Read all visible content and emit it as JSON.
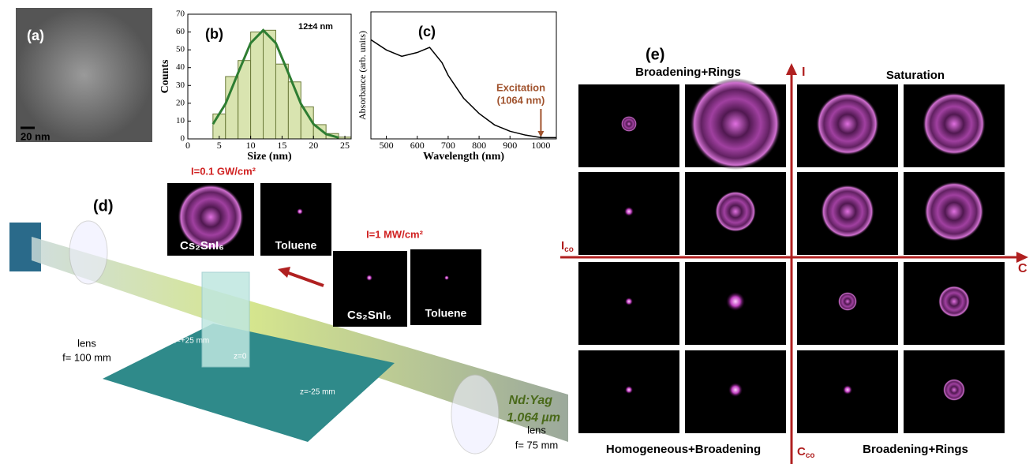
{
  "chart_data": [
    {
      "type": "histogram",
      "label": "(b)",
      "xlabel": "Size (nm)",
      "ylabel": "Counts",
      "annotation": "12±4 nm",
      "bins": [
        4,
        6,
        8,
        10,
        12,
        14,
        16,
        18,
        20,
        22,
        24,
        26
      ],
      "values": [
        14,
        35,
        44,
        60,
        61,
        42,
        32,
        18,
        8,
        3,
        1
      ],
      "color": "#d9e4b0",
      "fit": {
        "x": [
          4,
          6,
          8,
          10,
          12,
          14,
          16,
          18,
          20,
          22,
          24
        ],
        "values": [
          8.3,
          19.7,
          37,
          53.8,
          61,
          53.8,
          37,
          19.7,
          8.3,
          2.7,
          0.7
        ],
        "color": "#2e7d32"
      },
      "xlim": [
        0,
        26
      ],
      "ylim": [
        0,
        70
      ],
      "xticks": [
        0,
        5,
        10,
        15,
        20,
        25
      ],
      "yticks": [
        0,
        10,
        20,
        30,
        40,
        50,
        60,
        70
      ]
    },
    {
      "type": "line",
      "label": "(c)",
      "xlabel": "Wavelength (nm)",
      "ylabel": "Absorbance (arb. units)",
      "x": [
        450,
        500,
        550,
        600,
        640,
        680,
        700,
        750,
        800,
        850,
        900,
        950,
        1000,
        1050
      ],
      "values": [
        0.78,
        0.7,
        0.65,
        0.68,
        0.72,
        0.6,
        0.5,
        0.32,
        0.2,
        0.11,
        0.06,
        0.03,
        0.01,
        0.01
      ],
      "color": "#000000",
      "annotation": [
        "Excitation",
        "(1064 nm)"
      ],
      "arrow_x": 1000,
      "xlim": [
        450,
        1050
      ],
      "ylim": [
        0,
        1
      ],
      "xticks": [
        500,
        600,
        700,
        800,
        900,
        1000
      ]
    }
  ],
  "panel_a": {
    "label": "(a)",
    "scale": "20 nm"
  },
  "panel_d": {
    "label": "(d)",
    "high_intensity": "I=0.1 GW/cm²",
    "low_intensity": "I=1 MW/cm²",
    "sample": "Cs₂SnI₆",
    "solvent": "Toluene",
    "lens1": [
      "lens",
      "f= 100 mm"
    ],
    "lens2": [
      "lens",
      "f= 75 mm"
    ],
    "z_plus": "z=+25 mm",
    "z_zero": "z=0",
    "z_minus": "z=-25 mm",
    "laser": [
      "Nd:Yag",
      "1.064 µm"
    ]
  },
  "panel_e": {
    "label": "(e)",
    "top_left": "Broadening+Rings",
    "top_right": "Saturation",
    "bottom_left": "Homogeneous+Broadening",
    "bottom_right": "Broadening+Rings",
    "axis_i": "I",
    "axis_c": "C",
    "axis_ico": {
      "main": "I",
      "sub": "co"
    },
    "axis_cco": {
      "main": "C",
      "sub": "co"
    }
  }
}
